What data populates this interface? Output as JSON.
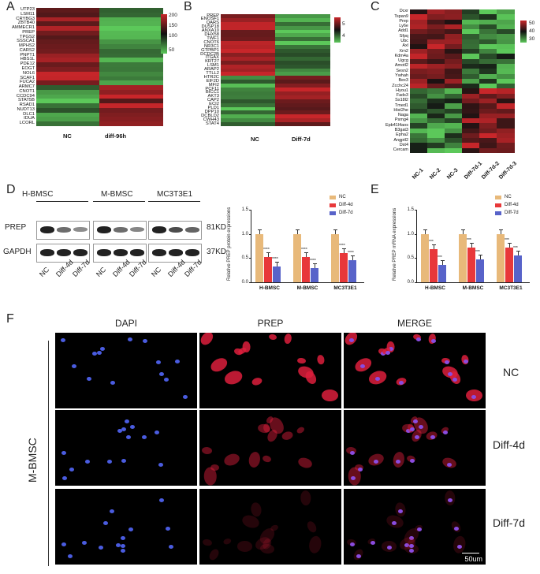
{
  "panels": {
    "A": {
      "letter": "A",
      "genes": [
        "UTP23",
        "LSM11",
        "CRYBG3",
        "ZBTB40",
        "AMMECR1",
        "PREP",
        "TPGS2",
        "SSSCA1",
        "MPHS2",
        "CARS2",
        "PNPT1",
        "HBS1L",
        "PDE12",
        "EOGT",
        "NOL6",
        "SCAF1",
        "FUCA2",
        "ARMC7",
        "CNOT1",
        "CCDC94",
        "STAT5B",
        "RSAD1",
        "NUDT13",
        "DLC1",
        "IDUA",
        "LCORL"
      ],
      "columns": [
        "NC",
        "diff-96h"
      ],
      "colorbar": [
        "200",
        "150",
        "100",
        "50"
      ],
      "colors": {
        "high": "#c8262a",
        "mid": "#111111",
        "low": "#5cc85a"
      }
    },
    "B": {
      "letter": "B",
      "genes": [
        "PREP",
        "ENOSF1",
        "QARS",
        "DUSP18",
        "ANXA10",
        "DHX58",
        "TWF1",
        "CNOT6",
        "NR3C1",
        "GTPBP1",
        "DCDC2B",
        "ITGAX",
        "KRT27",
        "LSM1",
        "ARAP2",
        "TTLL2",
        "HTR2C",
        "EIF2D",
        "MFI2",
        "PCF11",
        "BICC1",
        "AKT3",
        "CAP2",
        "ECI2",
        "PLD1",
        "DPP10",
        "DCBLD2",
        "CWH43",
        "STAT4"
      ],
      "columns": [
        "NC",
        "Diff-7d"
      ],
      "colorbar": [
        "5",
        "4"
      ]
    },
    "C": {
      "letter": "C",
      "genes": [
        "Dcxr",
        "Tspan9",
        "Prep",
        "Ly6e",
        "Add1",
        "Sfpq",
        "Ubc",
        "Axl",
        "Xrn2",
        "Kdm4a",
        "Ugcg",
        "Amotl2",
        "Sesn2",
        "Ywhah",
        "Bex3",
        "Zcchc24",
        "Hyou1",
        "Fads3",
        "Ss18l2",
        "Tmed1",
        "Hist2he",
        "Naga",
        "Psmg4",
        "Epb41l4aos",
        "B3gat3",
        "Epha2",
        "Angptl2",
        "Dst4",
        "Cercam"
      ],
      "columns": [
        "NC-1",
        "NC-2",
        "NC-3",
        "Diff-7d-1",
        "Diff-7d-2",
        "Diff-7d-3"
      ],
      "colorbar": [
        "50",
        "40",
        "30"
      ]
    },
    "D": {
      "letter": "D",
      "cell_lines": [
        "H-BMSC",
        "M-BMSC",
        "MC3T3E1"
      ],
      "rows": [
        "PREP",
        "GAPDH"
      ],
      "sizes": [
        "81KD",
        "37KD"
      ],
      "lanes": [
        "NC",
        "Diff-4d",
        "Diff-7d"
      ],
      "chart_ylabel": "Relative PREP protein expressions",
      "legend": [
        "NC",
        "Diff-4d",
        "Diff-7d"
      ],
      "yticks": [
        "1.5",
        "1.0",
        "0.5",
        "0.0"
      ],
      "sig": [
        "****",
        "****",
        "****"
      ]
    },
    "E": {
      "letter": "E",
      "chart_ylabel": "Relative PREP mRNA expressions",
      "legend": [
        "NC",
        "Diff-4d",
        "Diff-7d"
      ],
      "yticks": [
        "1.5",
        "1.0",
        "0.5",
        "0.0"
      ],
      "sig": [
        "***",
        "***",
        "***"
      ]
    },
    "F": {
      "letter": "F",
      "channels": [
        "DAPI",
        "PREP",
        "MERGE"
      ],
      "conditions": [
        "NC",
        "Diff-4d",
        "Diff-7d"
      ],
      "side_label": "M-BMSC",
      "scale": "50um"
    }
  },
  "chart_data": [
    {
      "type": "bar",
      "categories": [
        "H-BMSC",
        "M-BMSC",
        "MC3T3E1"
      ],
      "ylabel": "Relative PREP protein expressions",
      "ylim": [
        0,
        1.5
      ],
      "legend": "top-right",
      "series": [
        {
          "name": "NC",
          "values": [
            1.0,
            1.0,
            1.0
          ],
          "color": "#e8b97a"
        },
        {
          "name": "Diff-4d",
          "values": [
            0.52,
            0.52,
            0.6
          ],
          "color": "#e8383a"
        },
        {
          "name": "Diff-7d",
          "values": [
            0.33,
            0.3,
            0.46
          ],
          "color": "#5863c9"
        }
      ]
    },
    {
      "type": "bar",
      "categories": [
        "H-BMSC",
        "M-BMSC",
        "MC3T3E1"
      ],
      "ylabel": "Relative PREP mRNA expressions",
      "ylim": [
        0,
        1.5
      ],
      "legend": "top-right",
      "series": [
        {
          "name": "NC",
          "values": [
            1.0,
            1.0,
            1.0
          ],
          "color": "#e8b97a"
        },
        {
          "name": "Diff-4d",
          "values": [
            0.68,
            0.72,
            0.72
          ],
          "color": "#e8383a"
        },
        {
          "name": "Diff-7d",
          "values": [
            0.36,
            0.47,
            0.55
          ],
          "color": "#5863c9"
        }
      ]
    }
  ]
}
